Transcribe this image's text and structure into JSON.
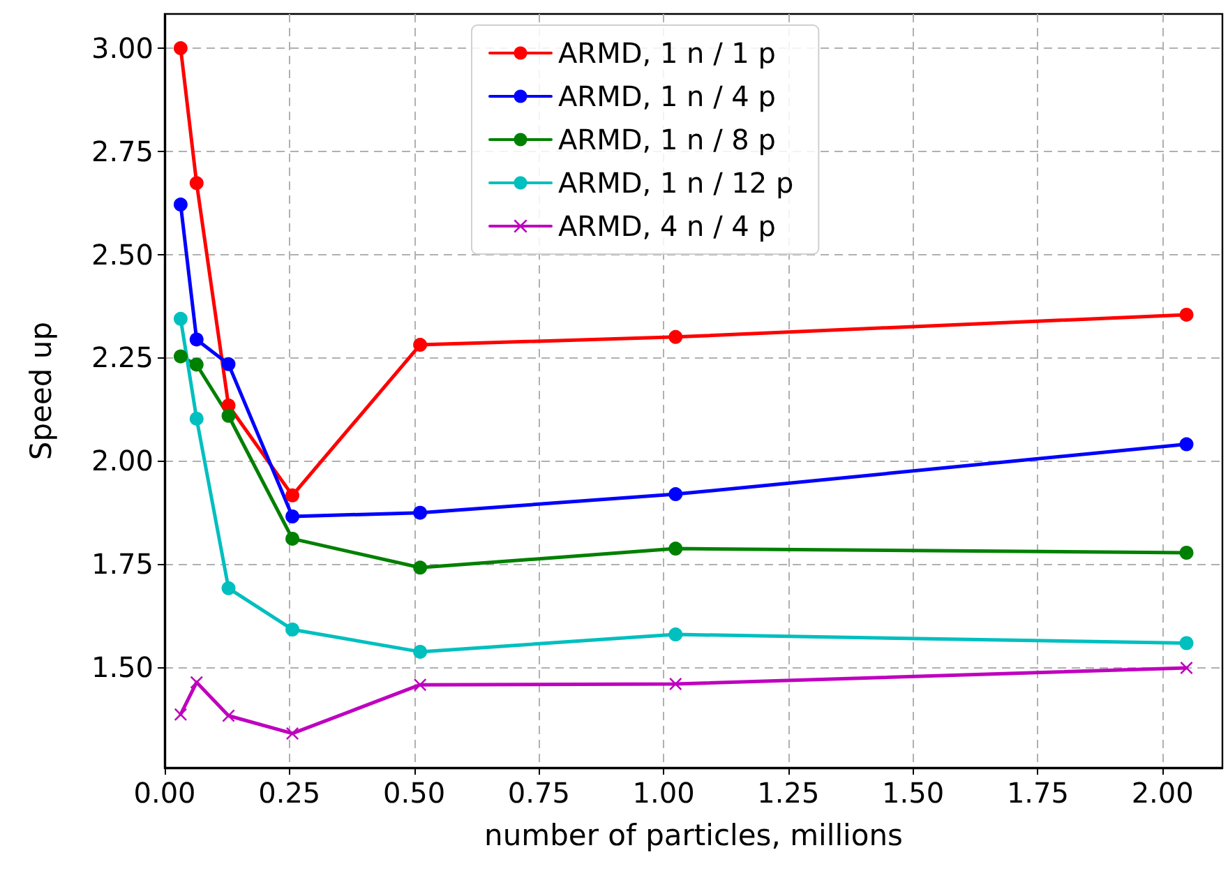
{
  "chart_data": {
    "type": "line",
    "xlabel": "number of particles, millions",
    "ylabel": "Speed up",
    "x": [
      0.032,
      0.064,
      0.128,
      0.256,
      0.512,
      1.024,
      2.048
    ],
    "series": [
      {
        "name": "ARMD, 1 n / 1 p",
        "color": "#ff0000",
        "marker": "circle",
        "values": [
          3.0,
          2.673,
          2.134,
          1.916,
          2.281,
          2.3,
          2.354
        ]
      },
      {
        "name": "ARMD, 1 n / 4 p",
        "color": "#0000ff",
        "marker": "circle",
        "values": [
          2.621,
          2.294,
          2.234,
          1.865,
          1.874,
          1.919,
          2.04
        ]
      },
      {
        "name": "ARMD, 1 n / 8 p",
        "color": "#008000",
        "marker": "circle",
        "values": [
          2.253,
          2.233,
          2.109,
          1.811,
          1.741,
          1.787,
          1.777
        ]
      },
      {
        "name": "ARMD, 1 n / 12 p",
        "color": "#00bfbf",
        "marker": "circle",
        "values": [
          2.344,
          2.102,
          1.691,
          1.591,
          1.537,
          1.579,
          1.558
        ]
      },
      {
        "name": "ARMD, 4 n / 4 p",
        "color": "#bf00bf",
        "marker": "cross",
        "values": [
          1.385,
          1.463,
          1.382,
          1.339,
          1.457,
          1.459,
          1.498
        ]
      }
    ],
    "xlim": [
      0,
      2.12
    ],
    "xticks": [
      {
        "value": 0,
        "label": "0.00"
      },
      {
        "value": 0.25,
        "label": "0.25"
      },
      {
        "value": 0.5,
        "label": "0.50"
      },
      {
        "value": 0.75,
        "label": "0.75"
      },
      {
        "value": 1,
        "label": "1.00"
      },
      {
        "value": 1.25,
        "label": "1.25"
      },
      {
        "value": 1.5,
        "label": "1.50"
      },
      {
        "value": 1.75,
        "label": "1.75"
      },
      {
        "value": 2,
        "label": "2.00"
      }
    ],
    "ylim": [
      1.256,
      3.083
    ],
    "yticks": [
      {
        "value": 1.5,
        "label": "1.50"
      },
      {
        "value": 1.75,
        "label": "1.75"
      },
      {
        "value": 2,
        "label": "2.00"
      },
      {
        "value": 2.25,
        "label": "2.25"
      },
      {
        "value": 2.5,
        "label": "2.50"
      },
      {
        "value": 2.75,
        "label": "2.75"
      },
      {
        "value": 3,
        "label": "3.00"
      }
    ],
    "grid": true,
    "legend": "top",
    "line_style": "solid"
  }
}
